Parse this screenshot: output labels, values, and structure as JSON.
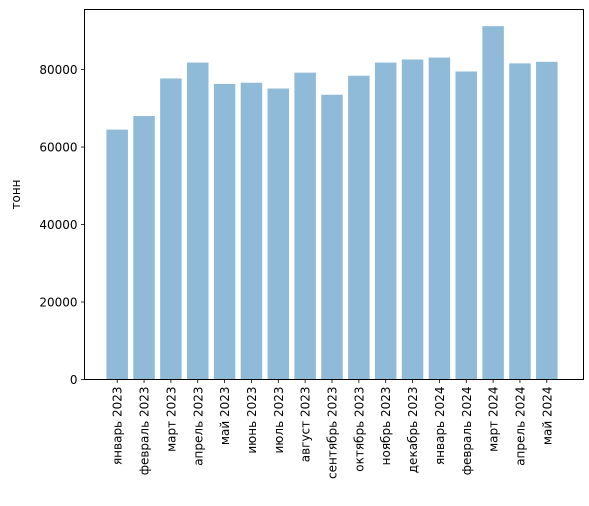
{
  "chart_data": {
    "type": "bar",
    "title": "",
    "xlabel": "",
    "ylabel": "тонн",
    "ylim": [
      0,
      95500
    ],
    "yticks": [
      0,
      20000,
      40000,
      60000,
      80000
    ],
    "ytick_labels": [
      "0",
      "20000",
      "40000",
      "60000",
      "80000"
    ],
    "grid": false,
    "bar_color": "#8fbbd9",
    "categories": [
      "январь 2023",
      "февраль 2023",
      "март 2023",
      "апрель 2023",
      "май 2023",
      "июнь 2023",
      "июль 2023",
      "август 2023",
      "сентябрь 2023",
      "октябрь 2023",
      "ноябрь 2023",
      "декабрь 2023",
      "январь 2024",
      "февраль 2024",
      "март 2024",
      "апрель 2024",
      "май 2024"
    ],
    "values": [
      64500,
      68000,
      77700,
      81800,
      76300,
      76600,
      75100,
      79200,
      73500,
      78400,
      81800,
      82600,
      83100,
      79500,
      91200,
      81600,
      82000
    ]
  }
}
